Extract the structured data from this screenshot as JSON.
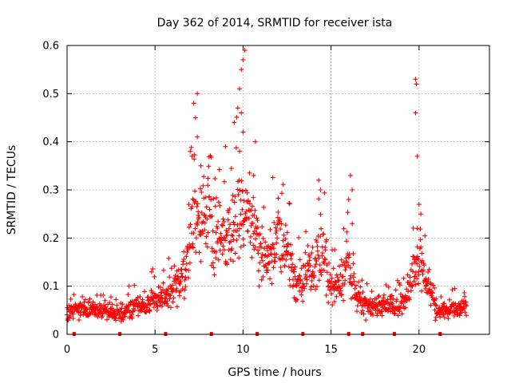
{
  "chart_data": {
    "type": "scatter",
    "title": "Day 362 of 2014, SRMTID for receiver ista",
    "xlabel": "GPS time / hours",
    "ylabel": "SRMTID / TECUs",
    "xlim": [
      0,
      24
    ],
    "ylim": [
      0,
      0.6
    ],
    "x_ticks": [
      0,
      5,
      10,
      15,
      20
    ],
    "x_tick_labels": [
      "0",
      "5",
      "10",
      "15",
      "20"
    ],
    "y_ticks": [
      0,
      0.1,
      0.2,
      0.3,
      0.4,
      0.5,
      0.6
    ],
    "y_tick_labels": [
      "0",
      "0.1",
      "0.2",
      "0.3",
      "0.4",
      "0.5",
      "0.6"
    ],
    "grid": true,
    "marker": "plus",
    "color": "#ff0000",
    "baseline_markers_x": [
      0.4,
      3.0,
      5.6,
      8.2,
      10.8,
      13.4,
      16.0,
      16.8,
      18.6,
      21.2
    ],
    "series": [
      {
        "name": "SRMTID",
        "trend": [
          [
            0.0,
            0.045
          ],
          [
            1.0,
            0.05
          ],
          [
            2.0,
            0.05
          ],
          [
            3.0,
            0.045
          ],
          [
            4.0,
            0.06
          ],
          [
            5.0,
            0.075
          ],
          [
            6.0,
            0.09
          ],
          [
            6.5,
            0.12
          ],
          [
            7.0,
            0.2
          ],
          [
            7.5,
            0.26
          ],
          [
            8.0,
            0.24
          ],
          [
            8.5,
            0.2
          ],
          [
            9.0,
            0.2
          ],
          [
            9.5,
            0.23
          ],
          [
            10.0,
            0.27
          ],
          [
            10.5,
            0.24
          ],
          [
            11.0,
            0.17
          ],
          [
            11.5,
            0.16
          ],
          [
            12.0,
            0.2
          ],
          [
            12.5,
            0.17
          ],
          [
            13.0,
            0.1
          ],
          [
            13.5,
            0.12
          ],
          [
            14.0,
            0.14
          ],
          [
            14.5,
            0.19
          ],
          [
            15.0,
            0.1
          ],
          [
            15.5,
            0.1
          ],
          [
            16.0,
            0.15
          ],
          [
            16.5,
            0.08
          ],
          [
            17.0,
            0.06
          ],
          [
            18.0,
            0.06
          ],
          [
            19.0,
            0.06
          ],
          [
            19.5,
            0.1
          ],
          [
            20.0,
            0.16
          ],
          [
            20.5,
            0.1
          ],
          [
            21.0,
            0.05
          ],
          [
            22.0,
            0.05
          ],
          [
            22.7,
            0.06
          ]
        ],
        "outliers": [
          [
            7.2,
            0.48
          ],
          [
            7.4,
            0.5
          ],
          [
            7.3,
            0.45
          ],
          [
            7.4,
            0.41
          ],
          [
            7.0,
            0.38
          ],
          [
            7.1,
            0.37
          ],
          [
            7.6,
            0.35
          ],
          [
            9.0,
            0.39
          ],
          [
            9.5,
            0.44
          ],
          [
            9.7,
            0.47
          ],
          [
            9.8,
            0.51
          ],
          [
            9.9,
            0.55
          ],
          [
            10.0,
            0.57
          ],
          [
            10.1,
            0.59
          ],
          [
            9.9,
            0.46
          ],
          [
            10.0,
            0.42
          ],
          [
            9.8,
            0.38
          ],
          [
            10.7,
            0.4
          ],
          [
            10.6,
            0.33
          ],
          [
            14.3,
            0.32
          ],
          [
            14.4,
            0.3
          ],
          [
            16.1,
            0.33
          ],
          [
            16.2,
            0.3
          ],
          [
            16.0,
            0.28
          ],
          [
            19.8,
            0.53
          ],
          [
            19.85,
            0.52
          ],
          [
            19.8,
            0.46
          ],
          [
            19.9,
            0.37
          ],
          [
            20.0,
            0.27
          ],
          [
            20.1,
            0.25
          ],
          [
            19.9,
            0.22
          ]
        ],
        "x_range": [
          0.0,
          22.7
        ]
      }
    ]
  }
}
